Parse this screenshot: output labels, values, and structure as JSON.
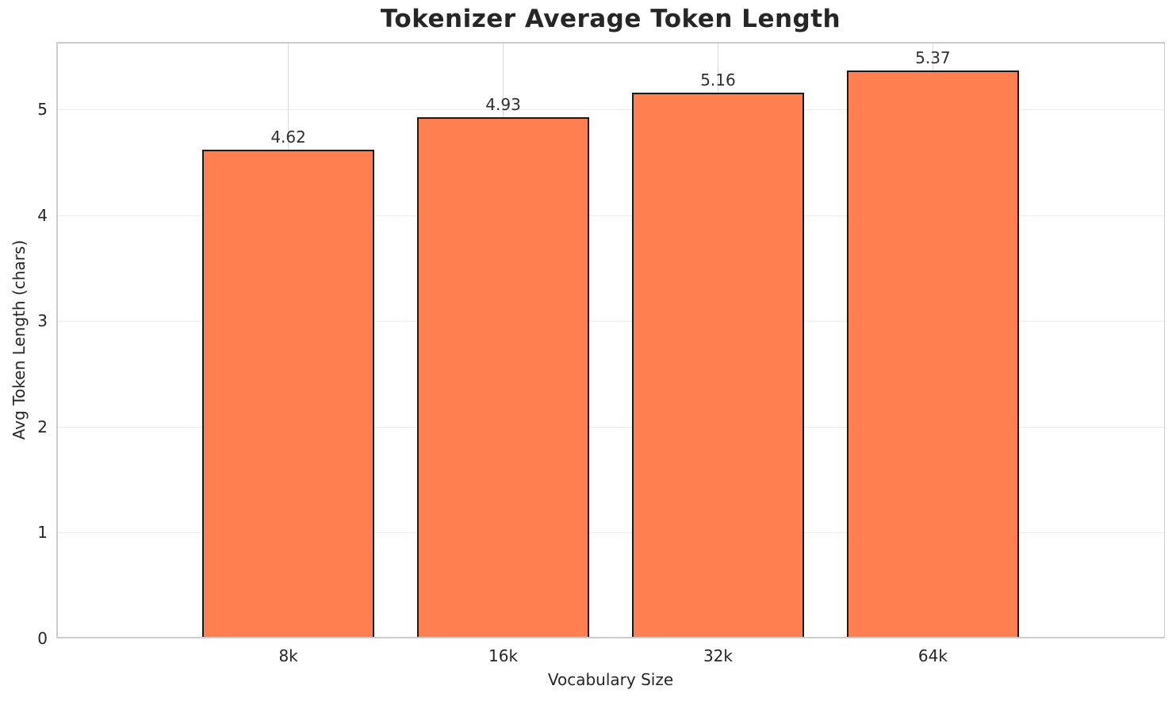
{
  "chart_data": {
    "type": "bar",
    "title": "Tokenizer Average Token Length",
    "xlabel": "Vocabulary Size",
    "ylabel": "Avg Token Length (chars)",
    "categories": [
      "8k",
      "16k",
      "32k",
      "64k"
    ],
    "values": [
      4.62,
      4.93,
      5.16,
      5.37
    ],
    "value_labels": [
      "4.62",
      "4.93",
      "5.16",
      "5.37"
    ],
    "yticks": [
      "0",
      "1",
      "2",
      "3",
      "4",
      "5"
    ],
    "ytick_values": [
      0,
      1,
      2,
      3,
      4,
      5
    ],
    "ylim": [
      0,
      5.64
    ],
    "grid": true,
    "legend_position": "none",
    "bar_color": "#FF7F50",
    "bar_edge_color": "#1a1a1a"
  },
  "colors": {
    "horizontal_grid": "#ececec",
    "vertical_grid": "#d9d9d9",
    "spine": "#cccccc",
    "text": "#262626",
    "title_text": "#262626",
    "background": "#ffffff"
  }
}
